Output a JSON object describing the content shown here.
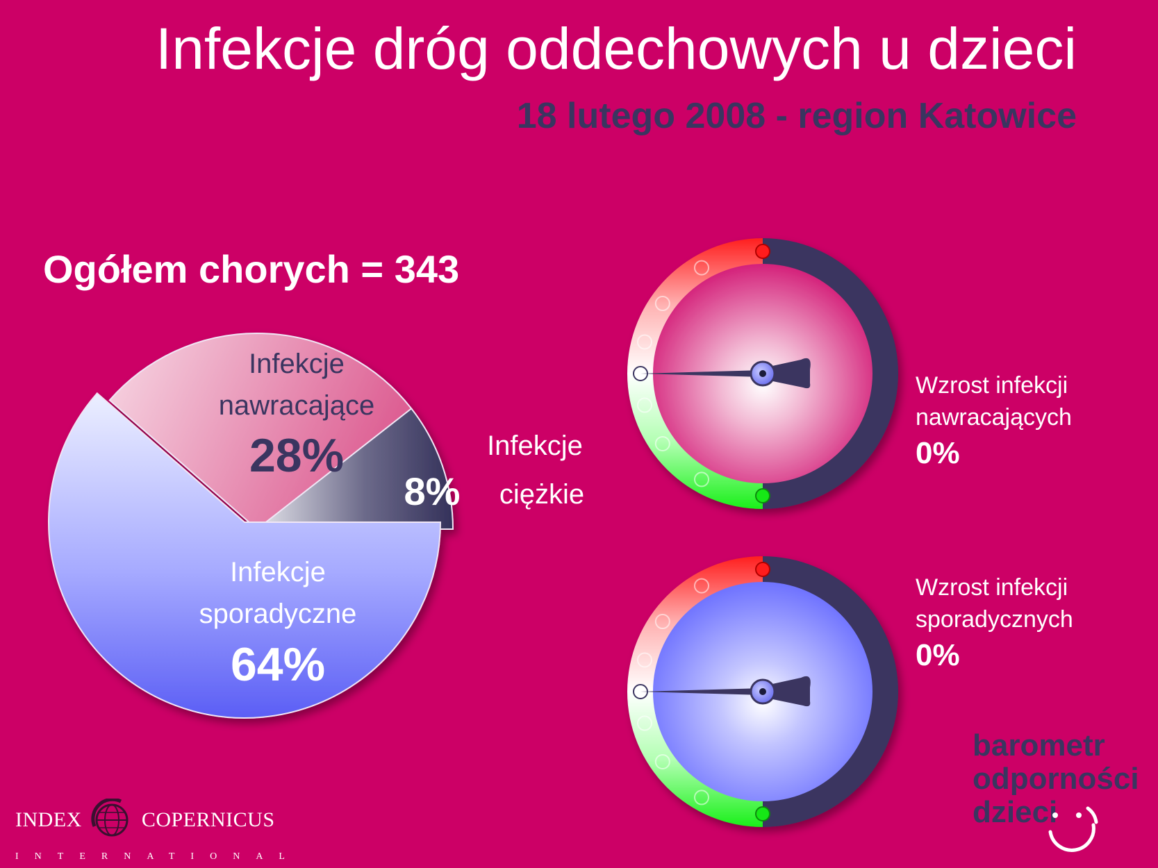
{
  "title": "Infekcje dróg oddechowych u dzieci",
  "subtitle": "18 lutego 2008 - region Katowice",
  "total_label": "Ogółem chorych = 343",
  "chart_data": [
    {
      "type": "pie",
      "title": "",
      "slices": [
        {
          "label": "Infekcje nawracające",
          "label_lines": [
            "Infekcje",
            "nawracające"
          ],
          "value": 28,
          "value_label": "28%",
          "color": "#e0779f"
        },
        {
          "label": "Infekcje ciężkie",
          "label_lines": [
            "Infekcje",
            "ciężkie"
          ],
          "value": 8,
          "value_label": "8%",
          "color": "#3a3560"
        },
        {
          "label": "Infekcje sporadyczne",
          "label_lines": [
            "Infekcje",
            "sporadyczne"
          ],
          "value": 64,
          "value_label": "64%",
          "color": "#7c82ff"
        }
      ]
    },
    {
      "type": "gauge",
      "label_lines": [
        "Wzrost infekcji",
        "nawracających"
      ],
      "value": 0,
      "value_label": "0%",
      "face_color": "#d4217a"
    },
    {
      "type": "gauge",
      "label_lines": [
        "Wzrost infekcji",
        "sporadycznych"
      ],
      "value": 0,
      "value_label": "0%",
      "face_color": "#6e72ff"
    }
  ],
  "brand": {
    "lines": [
      "barometr",
      "odporności",
      "dzieci"
    ]
  },
  "logo": {
    "left": "INDEX",
    "right": "COPERNICUS",
    "sub": "INTERNATIONAL"
  },
  "colors": {
    "background": "#cc0066",
    "dark": "#3a3560",
    "gauge_red": "#ff2222",
    "gauge_green": "#22ee22"
  }
}
